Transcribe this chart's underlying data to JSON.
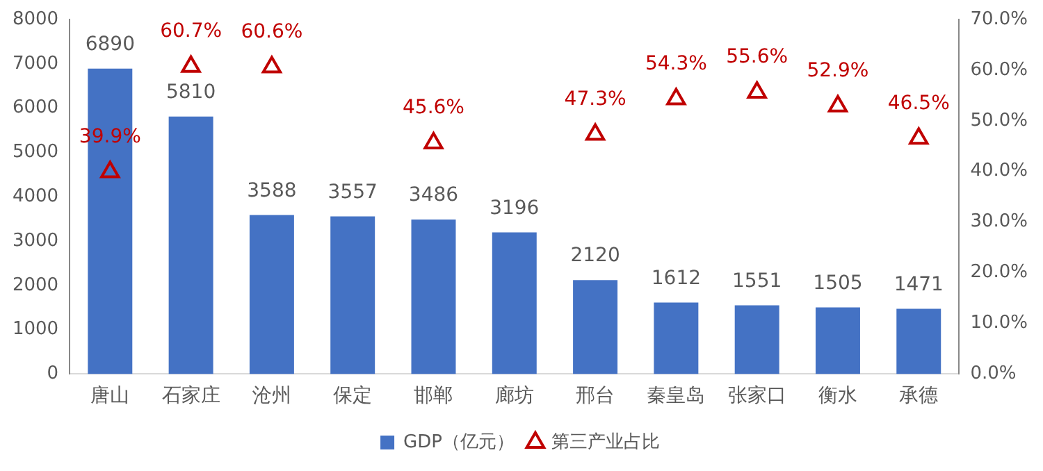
{
  "chart_data": {
    "type": "bar",
    "categories": [
      "唐山",
      "石家庄",
      "沧州",
      "保定",
      "邯郸",
      "廊坊",
      "邢台",
      "秦皇岛",
      "张家口",
      "衡水",
      "承德"
    ],
    "series": [
      {
        "name": "GDP（亿元）",
        "color": "#4472c4",
        "values": [
          6890,
          5810,
          3588,
          3557,
          3486,
          3196,
          2120,
          1612,
          1551,
          1505,
          1471
        ],
        "value_labels": [
          "6890",
          "5810",
          "3588",
          "3557",
          "3486",
          "3196",
          "2120",
          "1612",
          "1551",
          "1505",
          "1471"
        ]
      },
      {
        "name": "第三产业占比",
        "type": "scatter",
        "axis": "y2",
        "marker": "triangle",
        "color": "#c00000",
        "values": [
          39.9,
          60.7,
          60.6,
          null,
          45.6,
          null,
          47.3,
          54.3,
          55.6,
          52.9,
          46.5
        ],
        "value_labels": [
          "39.9%",
          "60.7%",
          "60.6%",
          null,
          "45.6%",
          null,
          "47.3%",
          "54.3%",
          "55.6%",
          "52.9%",
          "46.5%"
        ]
      }
    ],
    "ylim": [
      0,
      8000
    ],
    "yticks": [
      0,
      1000,
      2000,
      3000,
      4000,
      5000,
      6000,
      7000,
      8000
    ],
    "y2lim": [
      0,
      70
    ],
    "y2ticks": [
      {
        "value": 0,
        "label": "0.0%"
      },
      {
        "value": 10,
        "label": "10.0%"
      },
      {
        "value": 20,
        "label": "20.0%"
      },
      {
        "value": 30,
        "label": "30.0%"
      },
      {
        "value": 40,
        "label": "40.0%"
      },
      {
        "value": 50,
        "label": "50.0%"
      },
      {
        "value": 60,
        "label": "60.0%"
      },
      {
        "value": 70,
        "label": "70.0%"
      }
    ],
    "grid": false,
    "legend": "bottom"
  }
}
